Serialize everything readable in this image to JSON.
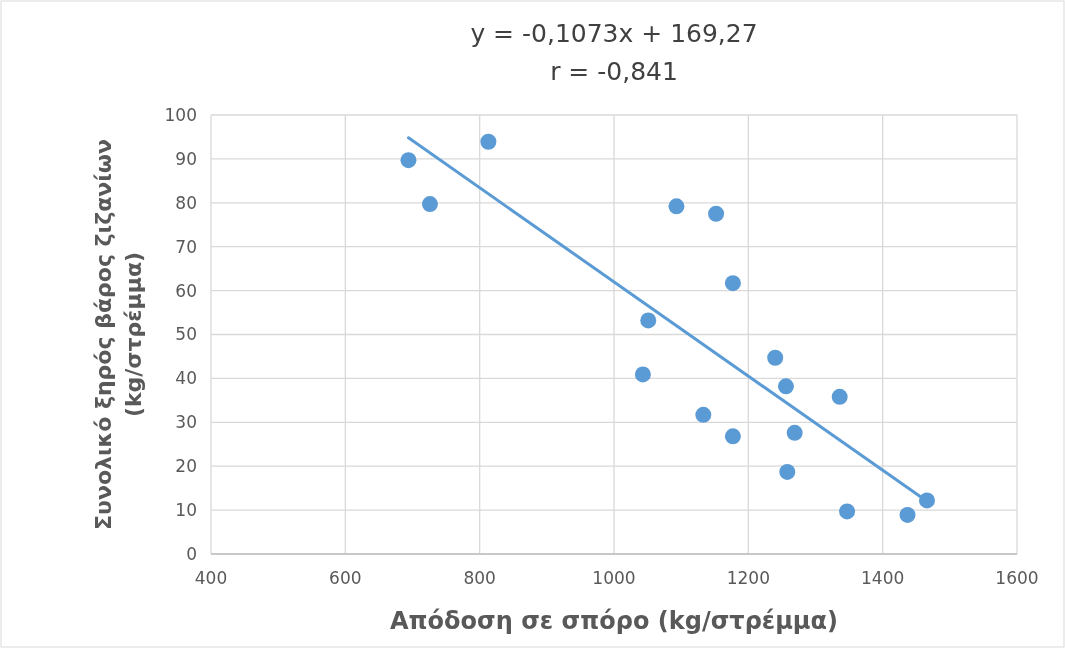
{
  "chart_data": {
    "type": "scatter",
    "xlabel": "Απόδοση σε σπόρο (kg/στρέμμα)",
    "ylabel": "Συνολικό ξηρός βάρος ζιζανίων (kg/στρέμμα)",
    "annotations": [
      "y = -0,1073x + 169,27",
      "r = -0,841"
    ],
    "xlim": [
      400,
      1600
    ],
    "xticks": [
      400,
      600,
      800,
      1000,
      1200,
      1400,
      1600
    ],
    "ylim": [
      0,
      100
    ],
    "yticks": [
      0,
      10,
      20,
      30,
      40,
      50,
      60,
      70,
      80,
      90,
      100
    ],
    "grid": true,
    "series": [
      {
        "marker": "circle",
        "color": "#5b9bd5",
        "x": [
          694,
          726,
          813,
          1093,
          1152,
          1177,
          1051,
          1043,
          1240,
          1256,
          1336,
          1133,
          1177,
          1269,
          1258,
          1466,
          1347,
          1437
        ],
        "values": [
          89.7,
          79.7,
          93.9,
          79.2,
          77.5,
          61.7,
          53.2,
          40.9,
          44.7,
          38.2,
          35.8,
          31.7,
          26.8,
          27.6,
          18.7,
          12.2,
          9.7,
          8.9
        ]
      },
      {
        "type": "line",
        "color": "#5b9bd5",
        "x": [
          694,
          1466
        ],
        "values": [
          94.8,
          12.0
        ]
      }
    ]
  }
}
